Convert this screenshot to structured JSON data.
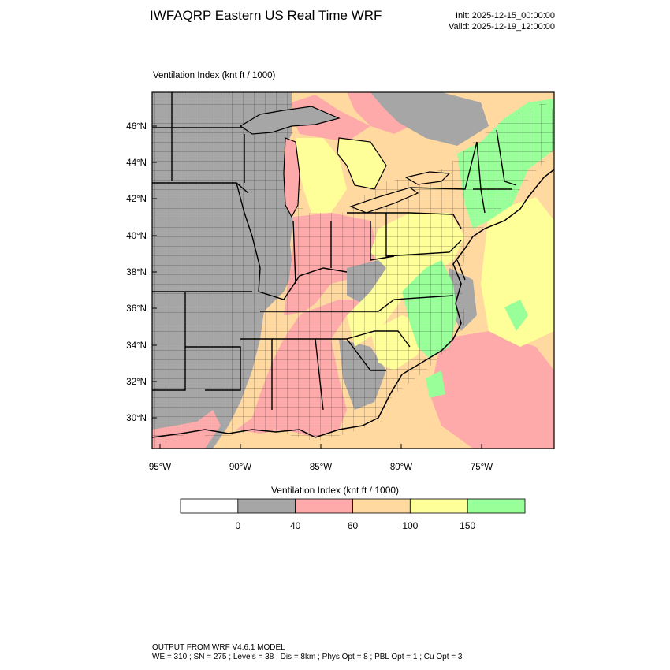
{
  "header": {
    "title": "IWFAQRP Eastern US Real Time WRF",
    "init": "Init: 2025-12-15_00:00:00",
    "valid": "Valid: 2025-12-19_12:00:00"
  },
  "plot": {
    "label": "Ventilation Index   (knt ft / 1000)",
    "lat_ticks": [
      "46°N",
      "44°N",
      "42°N",
      "40°N",
      "38°N",
      "36°N",
      "34°N",
      "32°N",
      "30°N"
    ],
    "lon_ticks": [
      "95°W",
      "90°W",
      "85°W",
      "80°W",
      "75°W"
    ]
  },
  "colorbar": {
    "title": "Ventilation Index  (knt ft / 1000)",
    "ticks": [
      "0",
      "40",
      "60",
      "100",
      "150"
    ],
    "colors": [
      "#ffffff",
      "#a6a6a6",
      "#ffaaaa",
      "#ffd9a0",
      "#ffff99",
      "#99ff99"
    ]
  },
  "footer": {
    "line1": "OUTPUT FROM WRF V4.6.1 MODEL",
    "line2": "WE = 310 ; SN = 275 ; Levels = 38 ; Dis = 8km ; Phys Opt = 8 ; PBL Opt = 1 ; Cu Opt = 3"
  }
}
